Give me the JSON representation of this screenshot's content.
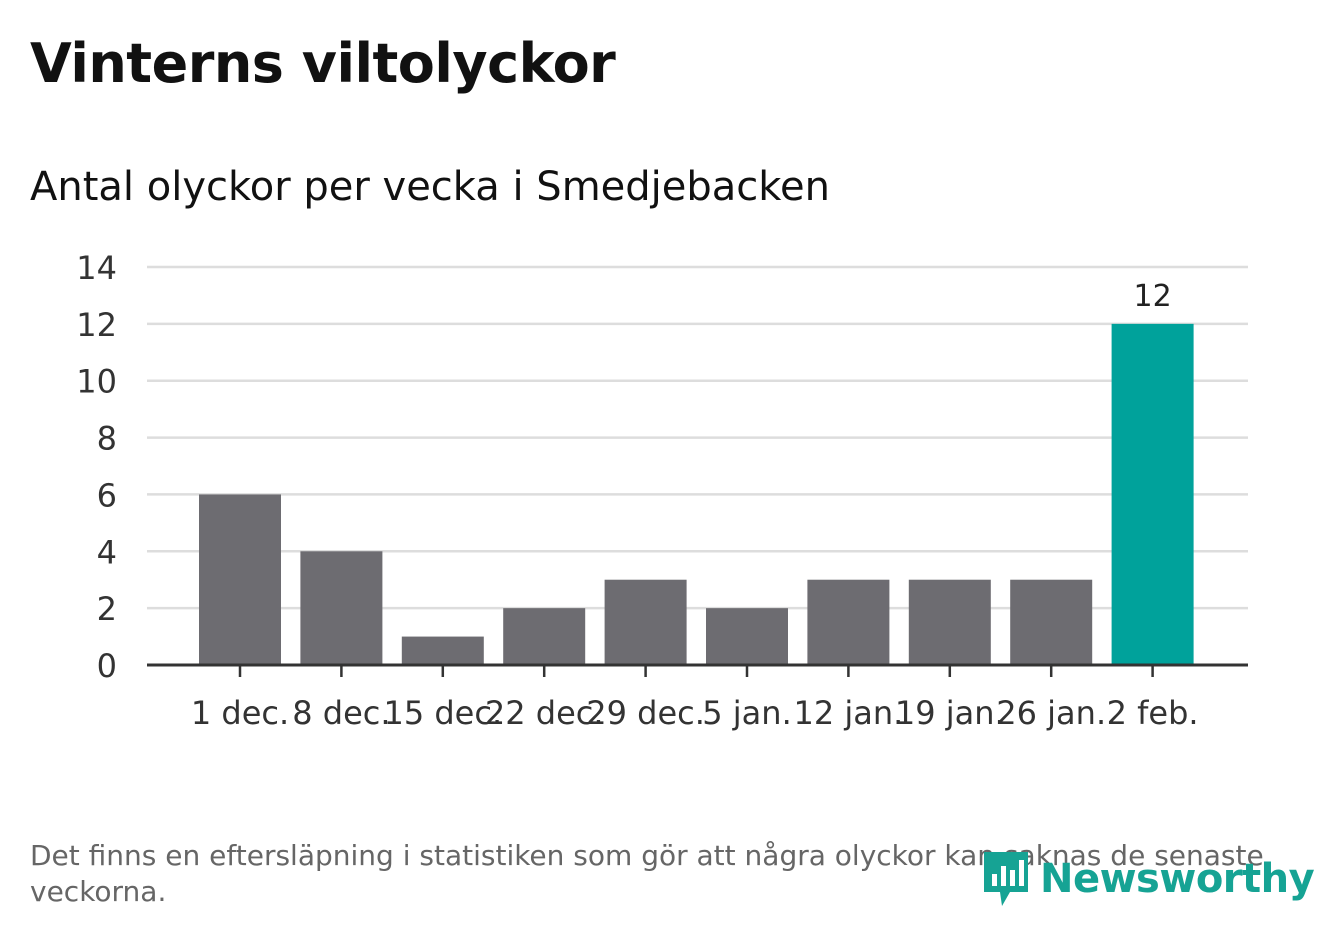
{
  "title": "Vinterns viltolyckor",
  "subtitle": "Antal olyckor per vecka i Smedjebacken",
  "footnote": "Det finns en eftersläpning i statistiken som gör att några olyckor kan saknas de senaste veckorna.",
  "brand": {
    "name": "Newsworthy",
    "logo_icon": "newsworthy-chart-bubble-icon"
  },
  "colors": {
    "bar": "#6d6c71",
    "highlight": "#00a29b",
    "grid": "#dddddd",
    "axis": "#333333",
    "brand": "#16a394"
  },
  "chart_data": {
    "type": "bar",
    "categories": [
      "1 dec.",
      "8 dec.",
      "15 dec.",
      "22 dec.",
      "29 dec.",
      "5 jan.",
      "12 jan.",
      "19 jan.",
      "26 jan.",
      "2 feb."
    ],
    "values": [
      6,
      4,
      1,
      2,
      3,
      2,
      3,
      3,
      3,
      12
    ],
    "highlight_index": 9,
    "data_labels": [
      {
        "index": 9,
        "text": "12"
      }
    ],
    "yticks": [
      0,
      2,
      4,
      6,
      8,
      10,
      12,
      14
    ],
    "ylim": [
      0,
      14
    ],
    "xlabel": "",
    "ylabel": "",
    "grid": true
  }
}
